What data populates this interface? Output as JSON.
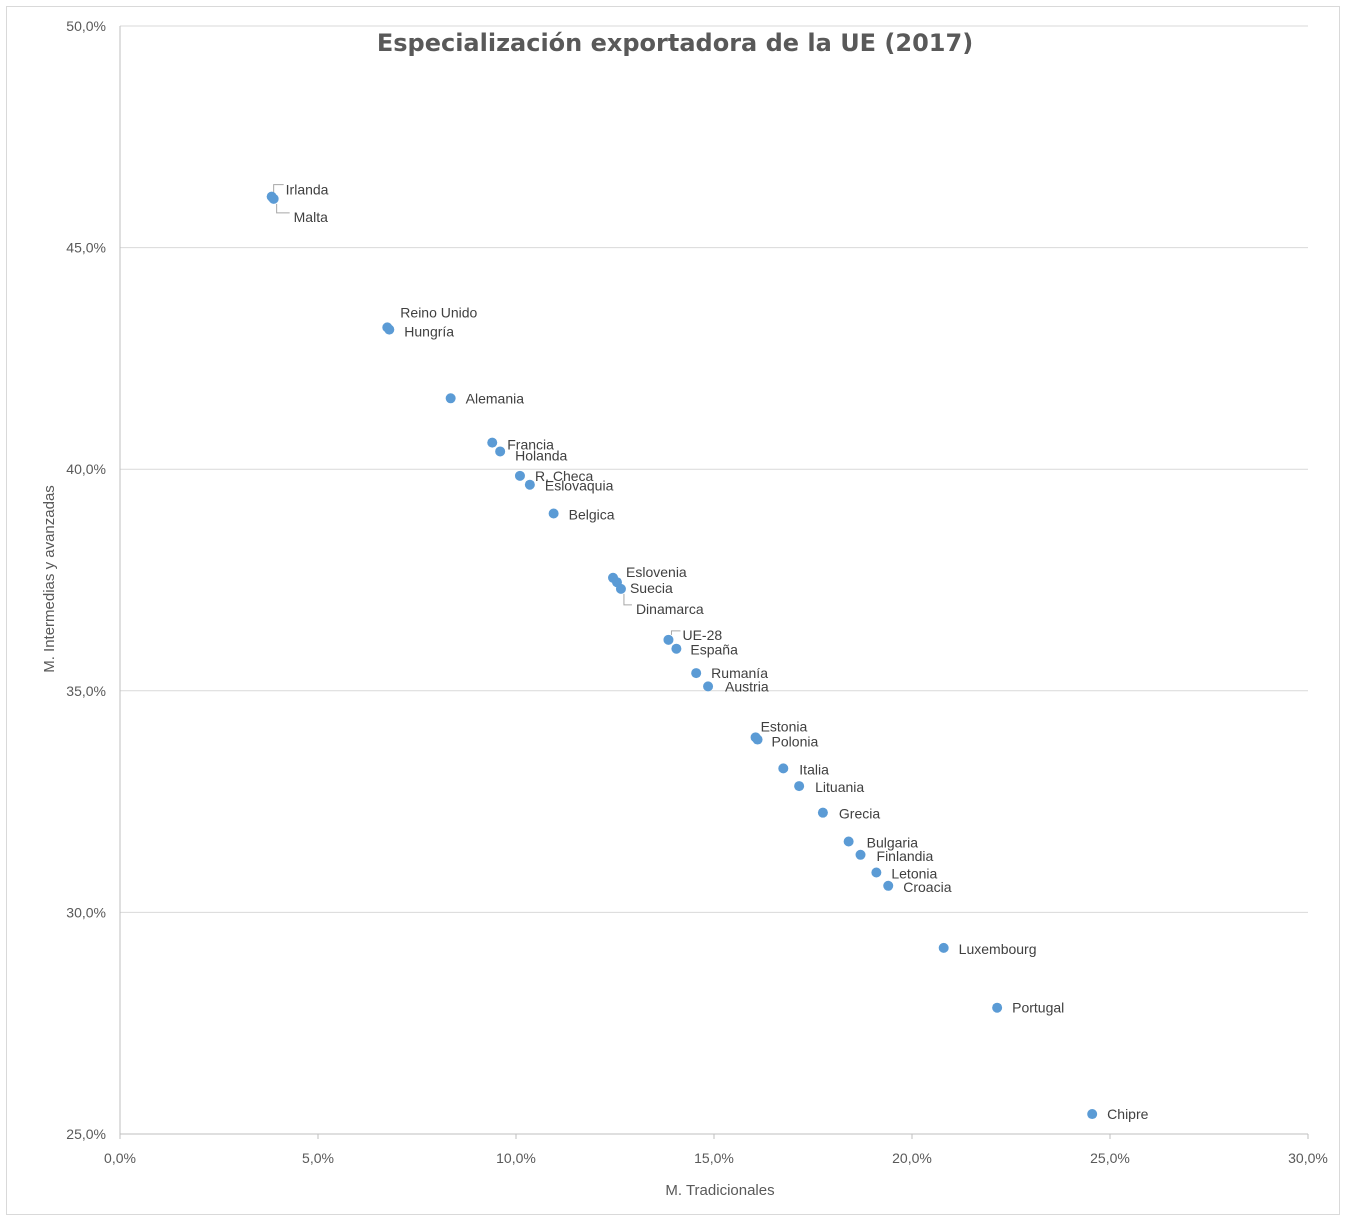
{
  "chart_data": {
    "type": "scatter",
    "title": "Especialización exportadora de la UE (2017)",
    "xlabel": "M. Tradicionales",
    "ylabel": "M. Intermedias y avanzadas",
    "xlim": [
      0,
      30
    ],
    "ylim": [
      25,
      50
    ],
    "x_ticks": [
      "0,0%",
      "5,0%",
      "10,0%",
      "15,0%",
      "20,0%",
      "25,0%",
      "30,0%"
    ],
    "y_ticks": [
      "25,0%",
      "30,0%",
      "35,0%",
      "40,0%",
      "45,0%",
      "50,0%"
    ],
    "grid": "horizontal",
    "marker_color": "#5b9bd5",
    "points": [
      {
        "label": "Irlanda",
        "x": 3.83,
        "y": 46.15
      },
      {
        "label": "Malta",
        "x": 3.88,
        "y": 46.1
      },
      {
        "label": "Reino Unido",
        "x": 6.75,
        "y": 43.2
      },
      {
        "label": "Hungría",
        "x": 6.8,
        "y": 43.15
      },
      {
        "label": "Alemania",
        "x": 8.35,
        "y": 41.6
      },
      {
        "label": "Francia",
        "x": 9.4,
        "y": 40.6
      },
      {
        "label": "Holanda",
        "x": 9.6,
        "y": 40.4
      },
      {
        "label": "R. Checa",
        "x": 10.1,
        "y": 39.85
      },
      {
        "label": "Eslovaquia",
        "x": 10.35,
        "y": 39.65
      },
      {
        "label": "Belgica",
        "x": 10.95,
        "y": 39.0
      },
      {
        "label": "Eslovenia",
        "x": 12.45,
        "y": 37.55
      },
      {
        "label": "Suecia",
        "x": 12.55,
        "y": 37.45
      },
      {
        "label": "Dinamarca",
        "x": 12.65,
        "y": 37.3
      },
      {
        "label": "UE-28",
        "x": 13.85,
        "y": 36.15
      },
      {
        "label": "España",
        "x": 14.05,
        "y": 35.95
      },
      {
        "label": "Rumanía",
        "x": 14.55,
        "y": 35.4
      },
      {
        "label": "Austria",
        "x": 14.85,
        "y": 35.1
      },
      {
        "label": "Estonia",
        "x": 16.05,
        "y": 33.95
      },
      {
        "label": "Polonia",
        "x": 16.1,
        "y": 33.9
      },
      {
        "label": "Italia",
        "x": 16.75,
        "y": 33.25
      },
      {
        "label": "Lituania",
        "x": 17.15,
        "y": 32.85
      },
      {
        "label": "Grecia",
        "x": 17.75,
        "y": 32.25
      },
      {
        "label": "Bulgaria",
        "x": 18.4,
        "y": 31.6
      },
      {
        "label": "Finlandia",
        "x": 18.7,
        "y": 31.3
      },
      {
        "label": "Letonia",
        "x": 19.1,
        "y": 30.9
      },
      {
        "label": "Croacia",
        "x": 19.4,
        "y": 30.6
      },
      {
        "label": "Luxembourg",
        "x": 20.8,
        "y": 29.2
      },
      {
        "label": "Portugal",
        "x": 22.15,
        "y": 27.85
      },
      {
        "label": "Chipre",
        "x": 24.55,
        "y": 25.45
      }
    ]
  }
}
